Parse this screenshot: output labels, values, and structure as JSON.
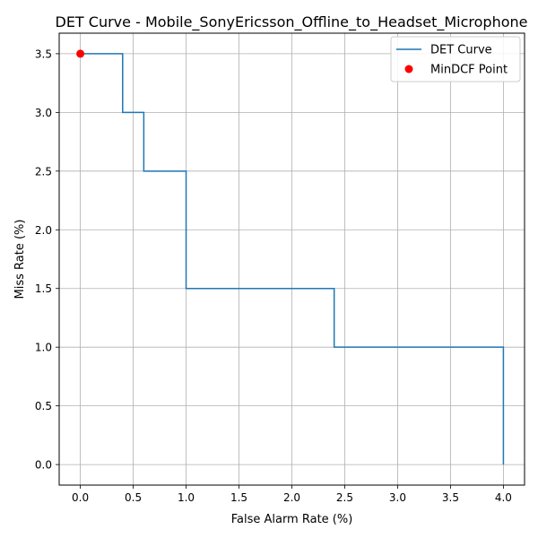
{
  "chart_data": {
    "type": "line",
    "title": "DET Curve - Mobile_SonyEricsson_Offline_to_Headset_Microphone",
    "xlabel": "False Alarm Rate (%)",
    "ylabel": "Miss Rate (%)",
    "xlim": [
      -0.2,
      4.2
    ],
    "ylim": [
      -0.175,
      3.675
    ],
    "xticks": [
      0.0,
      0.5,
      1.0,
      1.5,
      2.0,
      2.5,
      3.0,
      3.5,
      4.0
    ],
    "xtick_labels": [
      "0.0",
      "0.5",
      "1.0",
      "1.5",
      "2.0",
      "2.5",
      "3.0",
      "3.5",
      "4.0"
    ],
    "yticks": [
      0.0,
      0.5,
      1.0,
      1.5,
      2.0,
      2.5,
      3.0,
      3.5
    ],
    "ytick_labels": [
      "0.0",
      "0.5",
      "1.0",
      "1.5",
      "2.0",
      "2.5",
      "3.0",
      "3.5"
    ],
    "grid": true,
    "legend_position": "top-right",
    "series": [
      {
        "name": "DET Curve",
        "kind": "line",
        "color": "#1f77b4",
        "x": [
          0.0,
          0.4,
          0.4,
          0.6,
          0.6,
          1.0,
          1.0,
          2.4,
          2.4,
          4.0,
          4.0
        ],
        "y": [
          3.5,
          3.5,
          3.0,
          3.0,
          2.5,
          2.5,
          1.5,
          1.5,
          1.0,
          1.0,
          0.0
        ]
      },
      {
        "name": "MinDCF Point",
        "kind": "scatter",
        "color": "#ff0000",
        "x": [
          0.0
        ],
        "y": [
          3.5
        ]
      }
    ]
  }
}
